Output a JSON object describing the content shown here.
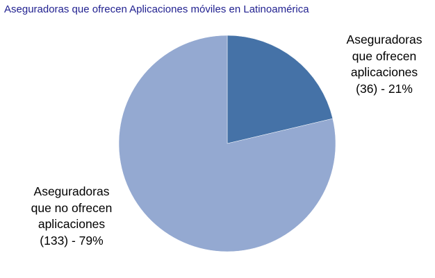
{
  "chart_data": {
    "type": "pie",
    "title": "Aseguradoras que ofrecen Aplicaciones móviles en Latinoamérica",
    "slices": [
      {
        "label_lines": [
          "Aseguradoras",
          "que ofrecen",
          "aplicaciones",
          "(36) - 21%"
        ],
        "value": 36,
        "percent": 21,
        "color": "#4572a7"
      },
      {
        "label_lines": [
          "Aseguradoras",
          "que no ofrecen",
          "aplicaciones",
          "(133) - 79%"
        ],
        "value": 133,
        "percent": 79,
        "color": "#94a9d1"
      }
    ]
  }
}
